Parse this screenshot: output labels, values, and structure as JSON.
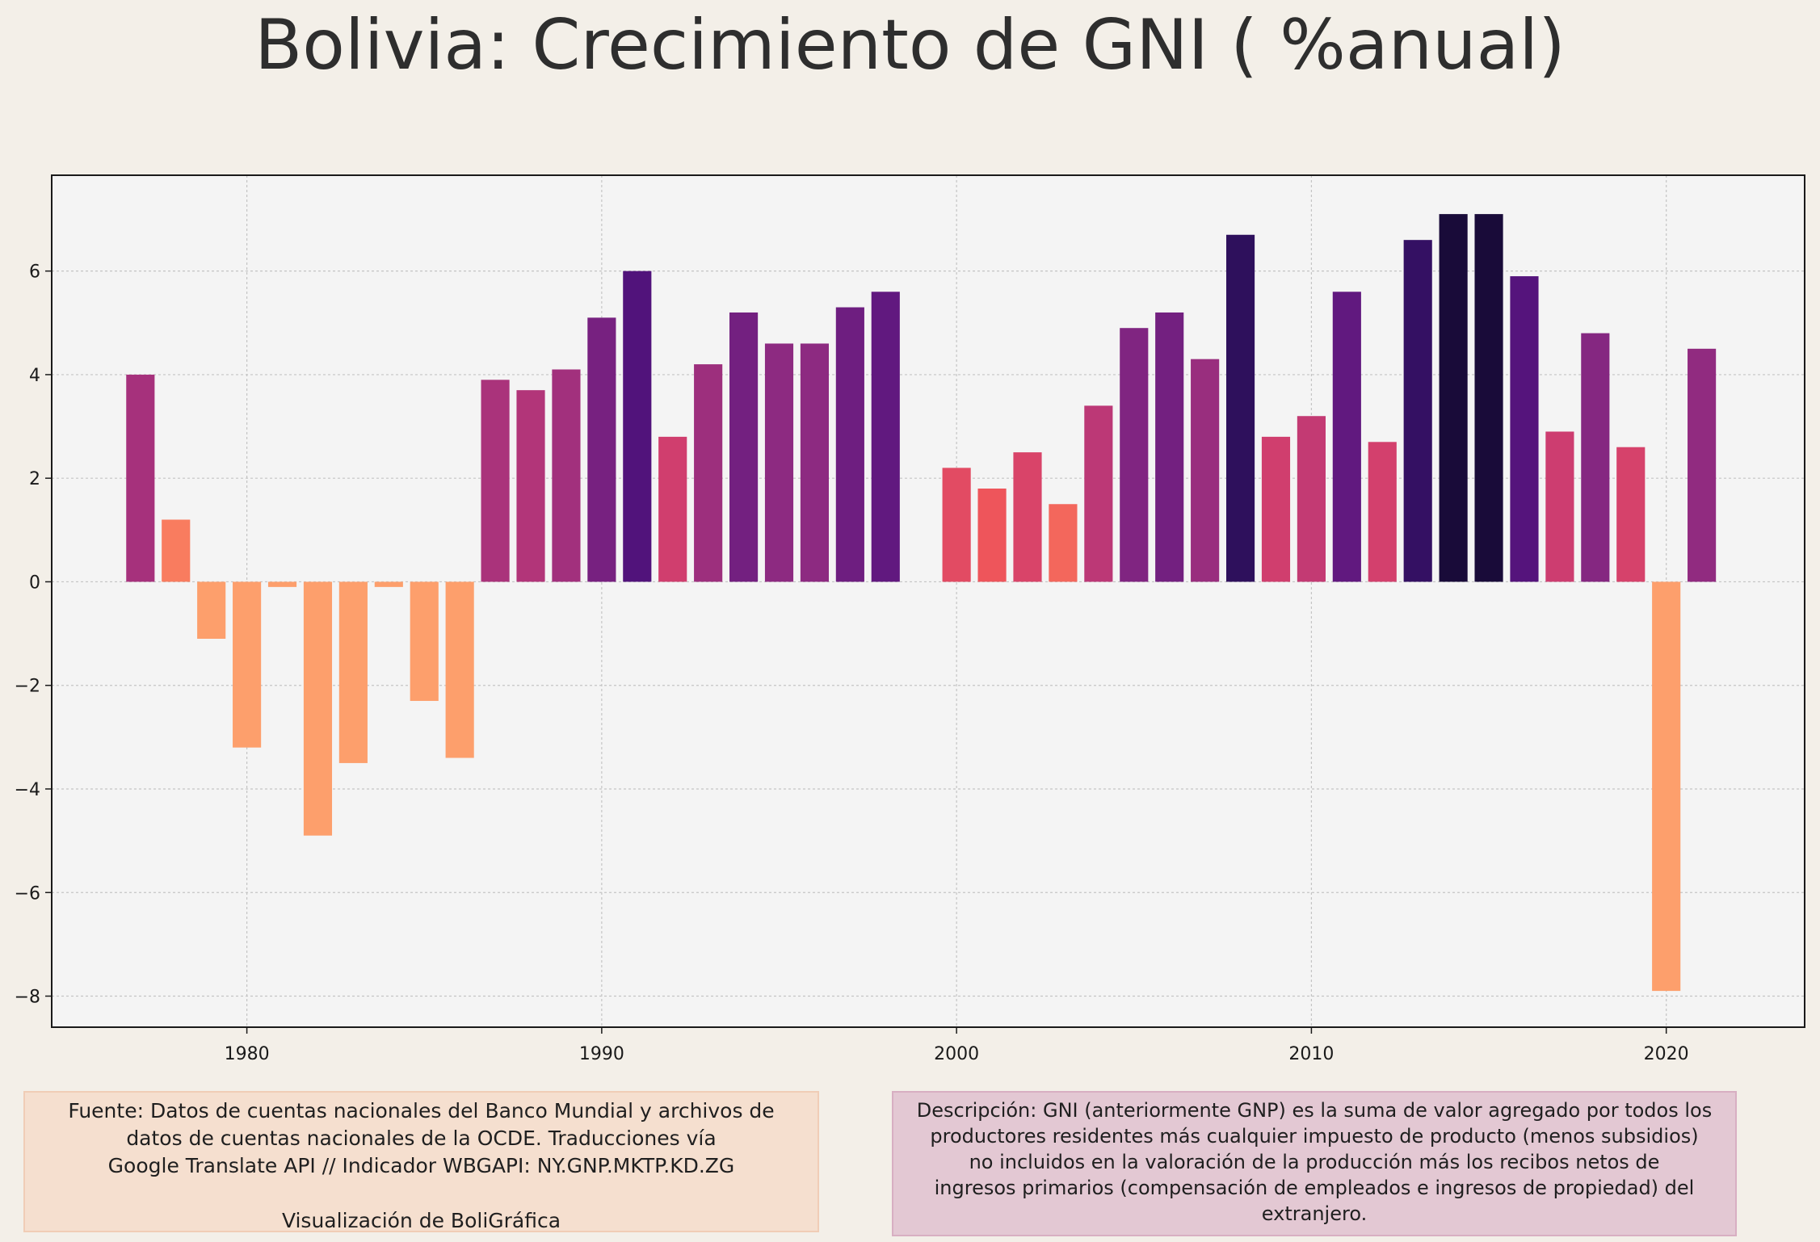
{
  "title": "Bolivia:  Crecimiento de GNI ( %anual)",
  "chart_data": {
    "type": "bar",
    "x": [
      1977,
      1978,
      1979,
      1980,
      1981,
      1982,
      1983,
      1984,
      1985,
      1986,
      1987,
      1988,
      1989,
      1990,
      1991,
      1992,
      1993,
      1994,
      1995,
      1996,
      1997,
      1998,
      2000,
      2001,
      2002,
      2003,
      2004,
      2005,
      2006,
      2007,
      2008,
      2009,
      2010,
      2011,
      2012,
      2013,
      2014,
      2015,
      2016,
      2017,
      2018,
      2019,
      2020,
      2021
    ],
    "values": [
      4.0,
      1.2,
      -1.1,
      -3.2,
      -0.1,
      -4.9,
      -3.5,
      -0.1,
      -2.3,
      -3.4,
      3.9,
      3.7,
      4.1,
      5.1,
      6.0,
      2.8,
      4.2,
      5.2,
      4.6,
      4.6,
      5.3,
      5.6,
      2.2,
      1.8,
      2.5,
      1.5,
      3.4,
      4.9,
      5.2,
      4.3,
      6.7,
      2.8,
      3.2,
      5.6,
      2.7,
      6.6,
      7.1,
      7.1,
      5.9,
      2.9,
      4.8,
      2.6,
      -7.9,
      4.5
    ],
    "xlim": [
      1974.5,
      2023.9
    ],
    "ylim": [
      -8.6,
      7.85
    ],
    "xticks": [
      1980,
      1990,
      2000,
      2010,
      2020
    ],
    "yticks": [
      6,
      4,
      2,
      0,
      -2,
      -4,
      -6,
      -8
    ],
    "ytick_labels": [
      "6",
      "4",
      "2",
      "0",
      "−2",
      "−4",
      "−6",
      "−8"
    ],
    "grid": true,
    "colormap": "magma_r by value",
    "colors": {
      "background": "#f3efe8",
      "plot_area": "#f4f4f4",
      "negative": "#fd9f6c"
    }
  },
  "source_box": {
    "lines": [
      "Fuente: Datos de cuentas nacionales del Banco Mundial y archivos de",
      "datos de cuentas nacionales de la OCDE. Traducciones vía",
      "Google Translate API // Indicador WBGAPI: NY.GNP.MKTP.KD.ZG"
    ],
    "credit": "Visualización de BoliGráfica"
  },
  "description_box": {
    "lines": [
      "Descripción: GNI (anteriormente GNP) es la suma de valor agregado por todos los",
      "productores residentes más cualquier impuesto de producto (menos subsidios)",
      "no incluidos en la valoración de la producción más los recibos netos de",
      "ingresos primarios (compensación de empleados e ingresos de propiedad) del",
      "extranjero."
    ]
  }
}
